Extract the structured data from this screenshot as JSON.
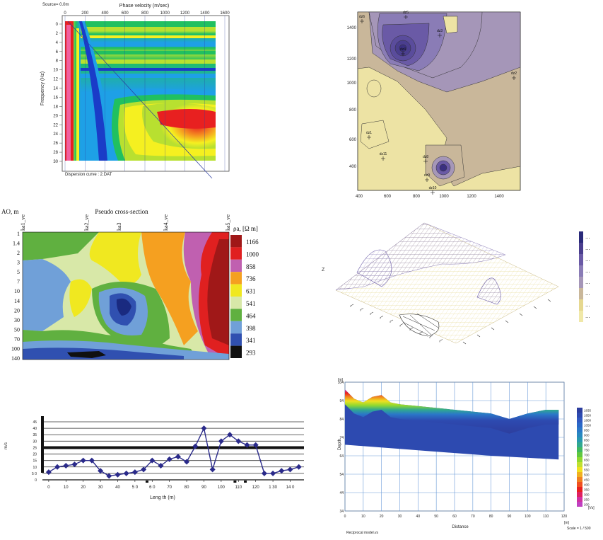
{
  "chart_data": [
    {
      "type": "heatmap",
      "source_label": "Source= 0.0m",
      "title": "Phase velocity (m/sec)",
      "ylabel": "Frequency (Hz)",
      "x_ticks": [
        "0",
        "200",
        "400",
        "600",
        "800",
        "1000",
        "1200",
        "1400",
        "1600"
      ],
      "y_ticks": [
        "0",
        "2",
        "4",
        "6",
        "8",
        "10",
        "12",
        "14",
        "16",
        "18",
        "20",
        "22",
        "24",
        "26",
        "28",
        "30"
      ],
      "xlim": [
        0,
        1600
      ],
      "ylim": [
        0,
        30
      ],
      "footer": "Dispersion curve : 2.DAT",
      "grid": true,
      "colors": [
        "#1a3cc8",
        "#1ea0e6",
        "#20c060",
        "#b8e030",
        "#f5f020",
        "#f59a20",
        "#e82020",
        "#f060a0"
      ]
    },
    {
      "type": "heatmap",
      "x_ticks": [
        "400",
        "600",
        "800",
        "1000",
        "1200",
        "1400"
      ],
      "x_tick_labels": [
        "400",
        "600",
        "800",
        "1000",
        "1200",
        "1400"
      ],
      "y_ticks": [
        "400",
        "600",
        "800",
        "1000",
        "1200",
        "1400"
      ],
      "station_labels": [
        "dz6",
        "dz5",
        "dz4",
        "dz3",
        "dz2",
        "dz1",
        "dz11",
        "dz8",
        "dz9",
        "dz10"
      ],
      "colors": [
        "#ede3a4",
        "#c9b79a",
        "#a596b8",
        "#8a7cb6",
        "#6a5aa6",
        "#4a3e8e"
      ]
    },
    {
      "type": "heatmap",
      "title": "Pseudo cross-section",
      "ylabel": "AO, m",
      "x_labels": [
        "ka1_ve",
        "ka2_ve",
        "ka3",
        "ka4_ve",
        "ka5_ve"
      ],
      "y_ticks": [
        "1",
        "1.4",
        "2",
        "3",
        "5",
        "7",
        "10",
        "14",
        "20",
        "30",
        "50",
        "70",
        "100",
        "140"
      ],
      "legend_title": "ρa, [Ω m]",
      "legend": [
        {
          "value": "1166",
          "color": "#a01818"
        },
        {
          "value": "1000",
          "color": "#e02020"
        },
        {
          "value": "858",
          "color": "#c060b0"
        },
        {
          "value": "736",
          "color": "#f5a020"
        },
        {
          "value": "631",
          "color": "#f0e820"
        },
        {
          "value": "541",
          "color": "#d8e8a8"
        },
        {
          "value": "464",
          "color": "#60b040"
        },
        {
          "value": "398",
          "color": "#70a0d8"
        },
        {
          "value": "341",
          "color": "#3050b0"
        },
        {
          "value": "293",
          "color": "#101010"
        }
      ]
    },
    {
      "type": "scatter",
      "legend_colors": [
        "#2a2a7a",
        "#2a2a7a",
        "#2a2a7a",
        "#2a2a7a",
        "#2a2a7a",
        "#2a2a7a",
        "#2a2a7a",
        "#2a2a7a"
      ],
      "zlabel": "Z"
    },
    {
      "type": "line",
      "xlabel": "Leng th (m)",
      "ylabel": "m/s",
      "y_ticks": [
        "0",
        "5",
        "10",
        "15",
        "20",
        "25",
        "30",
        "35",
        "40",
        "45"
      ],
      "y_tick_labels": [
        "0",
        "5 0",
        "10",
        "15",
        "20",
        "25",
        "30",
        "35",
        "40",
        "45"
      ],
      "x_ticks": [
        "0",
        "10",
        "20",
        "30",
        "40",
        "50",
        "60",
        "70",
        "80",
        "90",
        "100",
        "110",
        "120",
        "130",
        "140"
      ],
      "x_tick_labels": [
        "0",
        "10",
        "20",
        "30",
        "40",
        "5 0",
        "6 0",
        "70",
        "80",
        "90",
        "100",
        "110",
        "120",
        "1 30",
        "14 0"
      ],
      "xlim": [
        -2,
        148
      ],
      "ylim": [
        0,
        45
      ],
      "threshold": 25,
      "series": [
        {
          "x": [
            0,
            5,
            10,
            15,
            20,
            25,
            30,
            35,
            40,
            45,
            50,
            55,
            60,
            65,
            70,
            75,
            80,
            85,
            90,
            95,
            100,
            105,
            110,
            115,
            120,
            125,
            130,
            135,
            140,
            145
          ],
          "values": [
            6,
            10,
            11,
            12,
            15,
            15,
            7,
            3,
            4,
            5,
            6,
            8,
            15,
            11,
            16,
            18,
            14,
            26,
            40,
            8,
            30,
            35,
            30,
            27,
            27,
            5,
            5,
            7,
            8,
            10
          ],
          "color": "#2a2a8a"
        }
      ]
    },
    {
      "type": "heatmap",
      "y_unit": "[m]",
      "ylabel": "Depth",
      "xlabel": "Distance",
      "x_unit": "[m]",
      "y_ticks": [
        "104",
        "94",
        "84",
        "74",
        "64",
        "54",
        "44",
        "34"
      ],
      "x_ticks": [
        "0",
        "10",
        "20",
        "30",
        "40",
        "50",
        "60",
        "70",
        "80",
        "90",
        "100",
        "110",
        "120"
      ],
      "xlim": [
        0,
        120
      ],
      "ylim": [
        34,
        104
      ],
      "footer_left": "Reciprocal model.vs",
      "scale": "Scale = 1 / 500",
      "legend_unit": "[Vs]",
      "legend": [
        {
          "value": "1835",
          "color": "#2d3e9e"
        },
        {
          "value": "1850",
          "color": "#2d4ab0"
        },
        {
          "value": "1800",
          "color": "#3058c0"
        },
        {
          "value": "1050",
          "color": "#2a68c8"
        },
        {
          "value": "950",
          "color": "#2a78c8"
        },
        {
          "value": "900",
          "color": "#2888c0"
        },
        {
          "value": "850",
          "color": "#2898b0"
        },
        {
          "value": "800",
          "color": "#30a890"
        },
        {
          "value": "750",
          "color": "#40b860"
        },
        {
          "value": "700",
          "color": "#60c840"
        },
        {
          "value": "650",
          "color": "#90d830"
        },
        {
          "value": "600",
          "color": "#c0e030"
        },
        {
          "value": "550",
          "color": "#f0e020"
        },
        {
          "value": "500",
          "color": "#f0b020"
        },
        {
          "value": "450",
          "color": "#f08020"
        },
        {
          "value": "400",
          "color": "#f05020"
        },
        {
          "value": "350",
          "color": "#e82020"
        },
        {
          "value": "300",
          "color": "#e02060"
        },
        {
          "value": "250",
          "color": "#d030a0"
        },
        {
          "value": "200",
          "color": "#c040c0"
        }
      ]
    }
  ]
}
